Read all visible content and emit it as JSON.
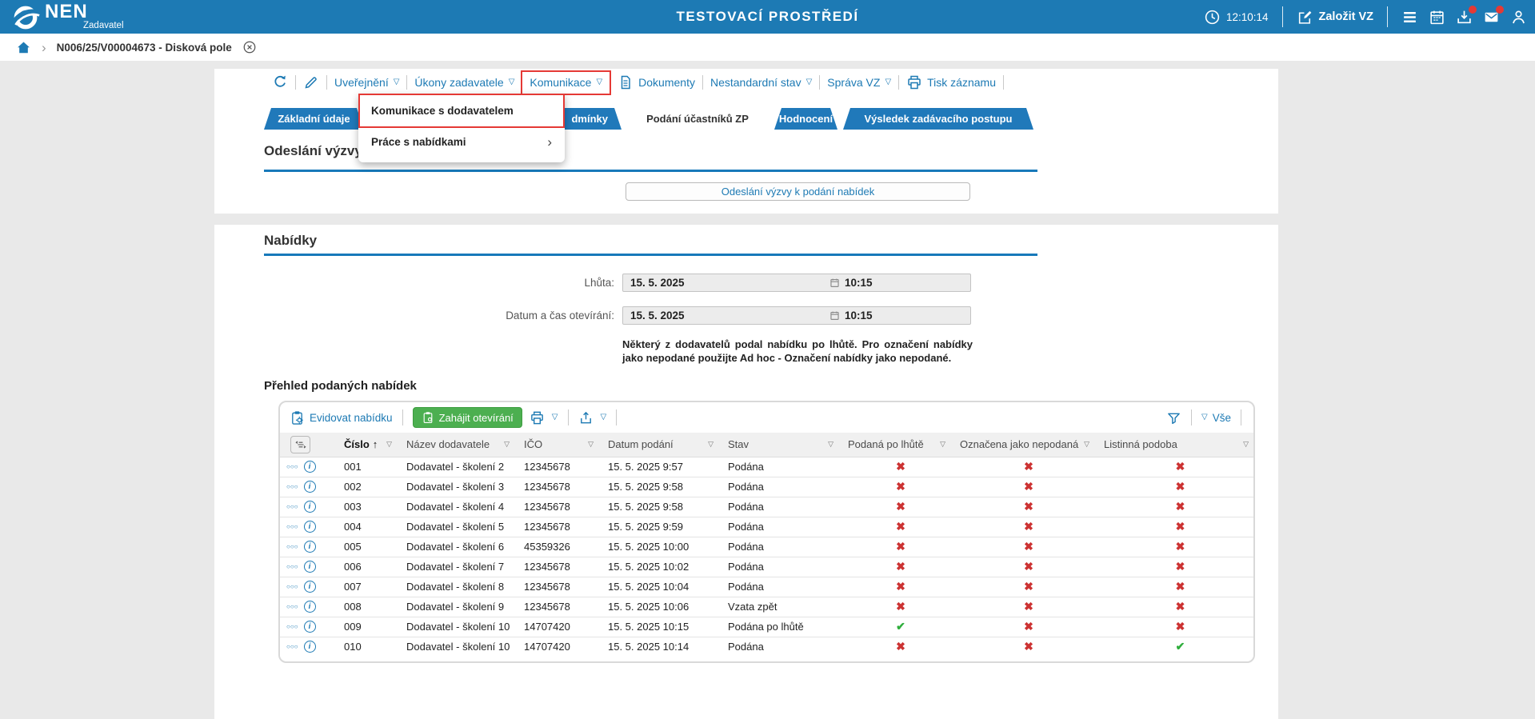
{
  "header": {
    "logo": {
      "name": "NEN",
      "subtitle": "Zadavatel"
    },
    "environment": "TESTOVACÍ PROSTŘEDÍ",
    "clock_time": "12:10:14",
    "create_vz_label": "Založit VZ"
  },
  "breadcrumb": {
    "record_title": "N006/25/V00004673 - Disková pole"
  },
  "record_toolbar": {
    "items": [
      {
        "label": "Uveřejnění"
      },
      {
        "label": "Úkony zadavatele"
      },
      {
        "label": "Komunikace"
      },
      {
        "label": "Dokumenty"
      },
      {
        "label": "Nestandardní stav"
      },
      {
        "label": "Správa VZ"
      },
      {
        "label": "Tisk záznamu"
      }
    ]
  },
  "context_menu": {
    "items": [
      {
        "label": "Komunikace s dodavatelem"
      },
      {
        "label": "Práce s nabídkami"
      }
    ]
  },
  "tabs": [
    {
      "label": "Základní údaje"
    },
    {
      "label": "dmínky"
    },
    {
      "label": "Podání účastníků ZP",
      "active": true
    },
    {
      "label": "Hodnocení"
    },
    {
      "label": "Výsledek zadávacího postupu"
    }
  ],
  "call_section": {
    "heading": "Odeslání výzvy k podání nabídek",
    "send_button": "Odeslání výzvy k podání nabídek"
  },
  "offers_section": {
    "heading": "Nabídky",
    "fields": [
      {
        "label": "Lhůta:",
        "date": "15. 5. 2025",
        "time": "10:15"
      },
      {
        "label": "Datum a čas otevírání:",
        "date": "15. 5. 2025",
        "time": "10:15"
      }
    ],
    "warning": "Některý z dodavatelů podal nabídku po lhůtě. Pro označení nabídky jako nepodané použijte Ad hoc - Označení nabídky jako nepodané."
  },
  "offers_table": {
    "heading": "Přehled podaných nabídek",
    "toolbar": {
      "evidovat_label": "Evidovat nabídku",
      "zahajit_label": "Zahájit otevírání",
      "filter_value": "Vše"
    },
    "columns": [
      "Číslo",
      "Název dodavatele",
      "IČO",
      "Datum podání",
      "Stav",
      "Podaná po lhůtě",
      "Označena jako nepodaná",
      "Listinná podoba"
    ],
    "sorted_column": "Číslo",
    "rows": [
      {
        "cislo": "001",
        "nazev": "Dodavatel - školení 2",
        "ico": "12345678",
        "datum": "15. 5. 2025 9:57",
        "stav": "Podána",
        "po_lhute": false,
        "nepodana": false,
        "listinna": false
      },
      {
        "cislo": "002",
        "nazev": "Dodavatel - školení 3",
        "ico": "12345678",
        "datum": "15. 5. 2025 9:58",
        "stav": "Podána",
        "po_lhute": false,
        "nepodana": false,
        "listinna": false
      },
      {
        "cislo": "003",
        "nazev": "Dodavatel - školení 4",
        "ico": "12345678",
        "datum": "15. 5. 2025 9:58",
        "stav": "Podána",
        "po_lhute": false,
        "nepodana": false,
        "listinna": false
      },
      {
        "cislo": "004",
        "nazev": "Dodavatel - školení 5",
        "ico": "12345678",
        "datum": "15. 5. 2025 9:59",
        "stav": "Podána",
        "po_lhute": false,
        "nepodana": false,
        "listinna": false
      },
      {
        "cislo": "005",
        "nazev": "Dodavatel - školení 6",
        "ico": "45359326",
        "datum": "15. 5. 2025 10:00",
        "stav": "Podána",
        "po_lhute": false,
        "nepodana": false,
        "listinna": false
      },
      {
        "cislo": "006",
        "nazev": "Dodavatel - školení 7",
        "ico": "12345678",
        "datum": "15. 5. 2025 10:02",
        "stav": "Podána",
        "po_lhute": false,
        "nepodana": false,
        "listinna": false
      },
      {
        "cislo": "007",
        "nazev": "Dodavatel - školení 8",
        "ico": "12345678",
        "datum": "15. 5. 2025 10:04",
        "stav": "Podána",
        "po_lhute": false,
        "nepodana": false,
        "listinna": false
      },
      {
        "cislo": "008",
        "nazev": "Dodavatel - školení 9",
        "ico": "12345678",
        "datum": "15. 5. 2025 10:06",
        "stav": "Vzata zpět",
        "po_lhute": false,
        "nepodana": false,
        "listinna": false
      },
      {
        "cislo": "009",
        "nazev": "Dodavatel - školení 10",
        "ico": "14707420",
        "datum": "15. 5. 2025 10:15",
        "stav": "Podána po lhůtě",
        "po_lhute": true,
        "nepodana": false,
        "listinna": false
      },
      {
        "cislo": "010",
        "nazev": "Dodavatel - školení 10",
        "ico": "14707420",
        "datum": "15. 5. 2025 10:14",
        "stav": "Podána",
        "po_lhute": false,
        "nepodana": false,
        "listinna": true
      }
    ]
  },
  "glyphs": {
    "dropdown": "▽",
    "sort_asc": "↑",
    "check": "✔",
    "cross": "✖",
    "submenu": "›",
    "breadcrumb_sep": "›",
    "row_menu": "○○○",
    "info": "i"
  },
  "colors": {
    "header_blue": "#1d7ab4",
    "accent_blue": "#1779ba",
    "green_button": "#4caf50",
    "red_cross": "#cc3232",
    "green_check": "#2fae3c",
    "annotation_red": "#e53935"
  }
}
